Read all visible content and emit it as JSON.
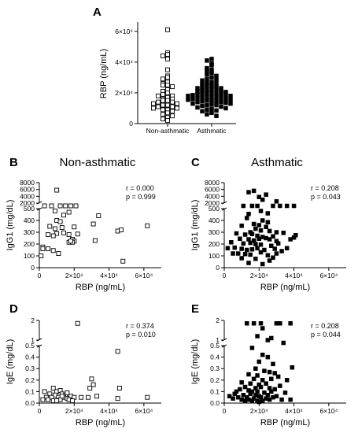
{
  "figure": {
    "title_nonasthmatic": "Non-asthmatic",
    "title_asthmatic": "Asthmatic"
  },
  "chart_data": [
    {
      "panel": "A",
      "type": "scatter",
      "ylabel": "RBP (ng/mL)",
      "categories": [
        "Non-asthmatic",
        "Asthmatic"
      ],
      "ylim": [
        0,
        65000
      ],
      "yticks": [
        "0",
        "2×10⁴",
        "4×10⁴",
        "6×10⁴"
      ],
      "series": [
        {
          "marker": "open-square",
          "values": [
            61000,
            46000,
            45000,
            44000,
            42000,
            35000,
            31000,
            30000,
            29000,
            27000,
            26000,
            25000,
            25000,
            24000,
            22000,
            21000,
            20000,
            19000,
            18000,
            18000,
            17000,
            16000,
            16000,
            15000,
            15000,
            14000,
            14000,
            13000,
            13000,
            12000,
            12000,
            11000,
            11000,
            10000,
            10000,
            9000,
            9000,
            8000,
            7000,
            6000,
            5000,
            4000,
            3000,
            2000
          ]
        },
        {
          "marker": "filled-square",
          "values": [
            42000,
            41000,
            39000,
            38000,
            36000,
            35000,
            34000,
            33000,
            32000,
            31000,
            30000,
            29000,
            28500,
            28000,
            27000,
            26500,
            26000,
            25500,
            25000,
            24500,
            24000,
            23500,
            23000,
            23000,
            22500,
            22000,
            22000,
            21500,
            21000,
            21000,
            20500,
            20000,
            20000,
            19500,
            19500,
            19000,
            19000,
            18500,
            18500,
            18000,
            18000,
            17500,
            17500,
            17000,
            17000,
            16500,
            16500,
            16000,
            16000,
            15500,
            15500,
            15000,
            15000,
            14500,
            14500,
            14000,
            14000,
            13500,
            13000,
            13000,
            12500,
            12000,
            12000,
            11500,
            11000,
            10500,
            10000,
            9500,
            9000,
            8500,
            8000,
            7000,
            6000,
            5000
          ]
        }
      ]
    },
    {
      "panel": "B",
      "type": "scatter",
      "title": "Non-asthmatic",
      "xlabel": "RBP (ng/mL)",
      "ylabel": "IgG1 (mg/dL)",
      "xlim": [
        0,
        70000
      ],
      "xticks": [
        "0",
        "2×10⁴",
        "4×10⁴",
        "6×10⁴"
      ],
      "ylim_lower": [
        0,
        500
      ],
      "yticks_lower": [
        "0",
        "100",
        "200",
        "300",
        "400",
        "500"
      ],
      "ylim_upper": [
        2000,
        8000
      ],
      "yticks_upper": [
        "2000",
        "4000",
        "6000",
        "8000"
      ],
      "annotation": [
        "r = 0.000",
        "p = 0.999"
      ],
      "marker": "open-square",
      "points": [
        [
          10000,
          5800
        ],
        [
          12000,
          530
        ],
        [
          3000,
          520
        ],
        [
          7000,
          520
        ],
        [
          15000,
          530
        ],
        [
          18000,
          520
        ],
        [
          21000,
          525
        ],
        [
          9000,
          480
        ],
        [
          17000,
          470
        ],
        [
          14000,
          445
        ],
        [
          34000,
          440
        ],
        [
          31000,
          370
        ],
        [
          10000,
          400
        ],
        [
          12000,
          390
        ],
        [
          6000,
          350
        ],
        [
          9000,
          330
        ],
        [
          13000,
          340
        ],
        [
          20000,
          345
        ],
        [
          10000,
          290
        ],
        [
          14000,
          295
        ],
        [
          8000,
          270
        ],
        [
          17000,
          280
        ],
        [
          22000,
          285
        ],
        [
          5000,
          280
        ],
        [
          19000,
          240
        ],
        [
          17000,
          215
        ],
        [
          20000,
          225
        ],
        [
          32000,
          230
        ],
        [
          45000,
          310
        ],
        [
          47000,
          320
        ],
        [
          62000,
          355
        ],
        [
          5000,
          160
        ],
        [
          2000,
          175
        ],
        [
          8000,
          145
        ],
        [
          1000,
          100
        ],
        [
          11000,
          120
        ],
        [
          2000,
          160
        ],
        [
          48000,
          55
        ],
        [
          19000,
          215
        ],
        [
          18000,
          225
        ]
      ]
    },
    {
      "panel": "C",
      "type": "scatter",
      "title": "Asthmatic",
      "xlabel": "RBP (ng/mL)",
      "ylabel": "IgG1 (mg/dL)",
      "xlim": [
        0,
        70000
      ],
      "xticks": [
        "0",
        "2×10⁴",
        "4×10⁴",
        "6×10⁴"
      ],
      "ylim_lower": [
        0,
        500
      ],
      "yticks_lower": [
        "0",
        "100",
        "200",
        "300",
        "400",
        "500"
      ],
      "ylim_upper": [
        2000,
        8000
      ],
      "yticks_upper": [
        "2000",
        "4000",
        "6000",
        "8000"
      ],
      "annotation": [
        "r = 0.208",
        "p = 0.043"
      ],
      "marker": "filled-square",
      "points": [
        [
          17000,
          5600
        ],
        [
          14000,
          5200
        ],
        [
          24000,
          4500
        ],
        [
          20000,
          3800
        ],
        [
          22000,
          3000
        ],
        [
          30000,
          2500
        ],
        [
          11000,
          540
        ],
        [
          16000,
          530
        ],
        [
          19000,
          520
        ],
        [
          28000,
          525
        ],
        [
          32000,
          535
        ],
        [
          36000,
          520
        ],
        [
          40000,
          525
        ],
        [
          21000,
          480
        ],
        [
          14000,
          455
        ],
        [
          25000,
          460
        ],
        [
          13000,
          420
        ],
        [
          22000,
          400
        ],
        [
          25000,
          385
        ],
        [
          17000,
          370
        ],
        [
          20000,
          360
        ],
        [
          10000,
          355
        ],
        [
          24000,
          345
        ],
        [
          18000,
          330
        ],
        [
          21000,
          315
        ],
        [
          15000,
          300
        ],
        [
          26000,
          310
        ],
        [
          30000,
          300
        ],
        [
          34000,
          295
        ],
        [
          7000,
          290
        ],
        [
          12000,
          280
        ],
        [
          16000,
          285
        ],
        [
          19000,
          270
        ],
        [
          22000,
          260
        ],
        [
          28000,
          265
        ],
        [
          41000,
          275
        ],
        [
          9000,
          245
        ],
        [
          14000,
          240
        ],
        [
          17000,
          230
        ],
        [
          20000,
          245
        ],
        [
          24000,
          250
        ],
        [
          26000,
          240
        ],
        [
          30000,
          225
        ],
        [
          38000,
          240
        ],
        [
          40000,
          255
        ],
        [
          4000,
          215
        ],
        [
          11000,
          205
        ],
        [
          15000,
          210
        ],
        [
          18000,
          200
        ],
        [
          21000,
          195
        ],
        [
          27000,
          185
        ],
        [
          31000,
          205
        ],
        [
          2000,
          165
        ],
        [
          6000,
          170
        ],
        [
          10000,
          160
        ],
        [
          13000,
          150
        ],
        [
          16000,
          155
        ],
        [
          19000,
          165
        ],
        [
          23000,
          150
        ],
        [
          29000,
          160
        ],
        [
          36000,
          165
        ],
        [
          8000,
          120
        ],
        [
          12000,
          115
        ],
        [
          15000,
          110
        ],
        [
          21000,
          130
        ],
        [
          25000,
          105
        ],
        [
          30000,
          120
        ],
        [
          10000,
          80
        ],
        [
          18000,
          75
        ],
        [
          26000,
          60
        ],
        [
          14000,
          40
        ],
        [
          22000,
          30
        ],
        [
          5000,
          120
        ],
        [
          33000,
          140
        ],
        [
          28000,
          85
        ]
      ]
    },
    {
      "panel": "D",
      "type": "scatter",
      "xlabel": "RBP (ng/mL)",
      "ylabel": "IgE (mg/dL)",
      "xlim": [
        0,
        70000
      ],
      "xticks": [
        "0",
        "2×10⁴",
        "4×10⁴",
        "6×10⁴"
      ],
      "ylim_lower": [
        0,
        0.5
      ],
      "yticks_lower": [
        "0.0",
        "0.1",
        "0.2",
        "0.3",
        "0.4",
        "0.5"
      ],
      "ylim_upper": [
        1,
        2
      ],
      "yticks_upper": [
        "1",
        "2"
      ],
      "annotation": [
        "r = 0.374",
        "p = 0.010"
      ],
      "marker": "open-square",
      "points": [
        [
          22000,
          1.85
        ],
        [
          45000,
          0.45
        ],
        [
          30000,
          0.21
        ],
        [
          31000,
          0.16
        ],
        [
          46000,
          0.13
        ],
        [
          29000,
          0.13
        ],
        [
          8000,
          0.13
        ],
        [
          3000,
          0.1
        ],
        [
          10000,
          0.1
        ],
        [
          12000,
          0.11
        ],
        [
          6000,
          0.08
        ],
        [
          9000,
          0.07
        ],
        [
          13000,
          0.08
        ],
        [
          15000,
          0.07
        ],
        [
          18000,
          0.06
        ],
        [
          4000,
          0.05
        ],
        [
          7000,
          0.05
        ],
        [
          11000,
          0.05
        ],
        [
          14000,
          0.05
        ],
        [
          16000,
          0.04
        ],
        [
          20000,
          0.05
        ],
        [
          24000,
          0.05
        ],
        [
          28000,
          0.05
        ],
        [
          33000,
          0.06
        ],
        [
          2000,
          0.03
        ],
        [
          5000,
          0.03
        ],
        [
          8000,
          0.02
        ],
        [
          12000,
          0.03
        ],
        [
          17000,
          0.03
        ],
        [
          45000,
          0.04
        ],
        [
          62000,
          0.05
        ],
        [
          10000,
          0.02
        ],
        [
          19000,
          0.02
        ],
        [
          13000,
          0.06
        ],
        [
          16000,
          0.09
        ]
      ]
    },
    {
      "panel": "E",
      "type": "scatter",
      "xlabel": "RBP (ng/mL)",
      "ylabel": "IgE (mg/dL)",
      "xlim": [
        0,
        70000
      ],
      "xticks": [
        "0",
        "2×10⁴",
        "4×10⁴",
        "6×10⁴"
      ],
      "ylim_lower": [
        0,
        0.5
      ],
      "yticks_lower": [
        "0.0",
        "0.1",
        "0.2",
        "0.3",
        "0.4",
        "0.5"
      ],
      "ylim_upper": [
        1,
        2
      ],
      "yticks_upper": [
        "1",
        "2"
      ],
      "annotation": [
        "r = 0.208",
        "p = 0.044"
      ],
      "marker": "filled-square",
      "points": [
        [
          13000,
          1.85
        ],
        [
          17000,
          1.85
        ],
        [
          21000,
          1.85
        ],
        [
          30000,
          1.85
        ],
        [
          32000,
          1.85
        ],
        [
          38000,
          1.85
        ],
        [
          22000,
          1.6
        ],
        [
          19000,
          1.2
        ],
        [
          27000,
          1.1
        ],
        [
          25000,
          1.0
        ],
        [
          34000,
          0.95
        ],
        [
          16000,
          0.48
        ],
        [
          22000,
          0.42
        ],
        [
          25000,
          0.4
        ],
        [
          20000,
          0.36
        ],
        [
          28000,
          0.34
        ],
        [
          39000,
          0.31
        ],
        [
          18000,
          0.3
        ],
        [
          23000,
          0.28
        ],
        [
          26000,
          0.27
        ],
        [
          29000,
          0.26
        ],
        [
          14000,
          0.25
        ],
        [
          19000,
          0.24
        ],
        [
          31000,
          0.23
        ],
        [
          17000,
          0.21
        ],
        [
          22000,
          0.2
        ],
        [
          27000,
          0.21
        ],
        [
          36000,
          0.2
        ],
        [
          10000,
          0.18
        ],
        [
          15000,
          0.17
        ],
        [
          20000,
          0.16
        ],
        [
          24000,
          0.17
        ],
        [
          32000,
          0.15
        ],
        [
          12000,
          0.14
        ],
        [
          18000,
          0.13
        ],
        [
          21000,
          0.14
        ],
        [
          26000,
          0.13
        ],
        [
          29000,
          0.12
        ],
        [
          9000,
          0.12
        ],
        [
          14000,
          0.11
        ],
        [
          16000,
          0.1
        ],
        [
          19000,
          0.1
        ],
        [
          23000,
          0.09
        ],
        [
          27000,
          0.1
        ],
        [
          35000,
          0.09
        ],
        [
          6000,
          0.08
        ],
        [
          11000,
          0.07
        ],
        [
          15000,
          0.08
        ],
        [
          18000,
          0.07
        ],
        [
          20000,
          0.06
        ],
        [
          25000,
          0.07
        ],
        [
          30000,
          0.06
        ],
        [
          8000,
          0.05
        ],
        [
          13000,
          0.05
        ],
        [
          17000,
          0.04
        ],
        [
          21000,
          0.05
        ],
        [
          24000,
          0.04
        ],
        [
          28000,
          0.05
        ],
        [
          5000,
          0.04
        ],
        [
          10000,
          0.03
        ],
        [
          14000,
          0.03
        ],
        [
          19000,
          0.02
        ],
        [
          22000,
          0.02
        ],
        [
          26000,
          0.03
        ],
        [
          33000,
          0.03
        ],
        [
          12000,
          0.02
        ],
        [
          16000,
          0.02
        ],
        [
          20000,
          0.01
        ],
        [
          38000,
          0.03
        ],
        [
          3000,
          0.06
        ],
        [
          7000,
          0.1
        ]
      ]
    }
  ]
}
